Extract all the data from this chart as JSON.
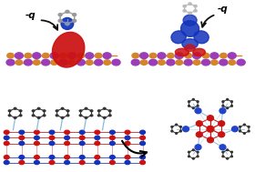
{
  "bg_color": "#ffffff",
  "cu_color": "#d4852a",
  "i_color": "#9b3dba",
  "orbital_red": "#cc1111",
  "orbital_blue": "#1133bb",
  "mol_gray": "#999999",
  "mol_dark": "#333333",
  "slab_blue": "#1133bb",
  "slab_red": "#cc1111",
  "slab_line_red": "#cc1111",
  "slab_line_blue": "#1133bb",
  "bond_light": "#88bbdd",
  "arrow_color": "#111111",
  "label_q": "-q",
  "cluster_red": "#cc1111",
  "cluster_blue": "#2244cc",
  "cluster_light": "#88bbdd"
}
